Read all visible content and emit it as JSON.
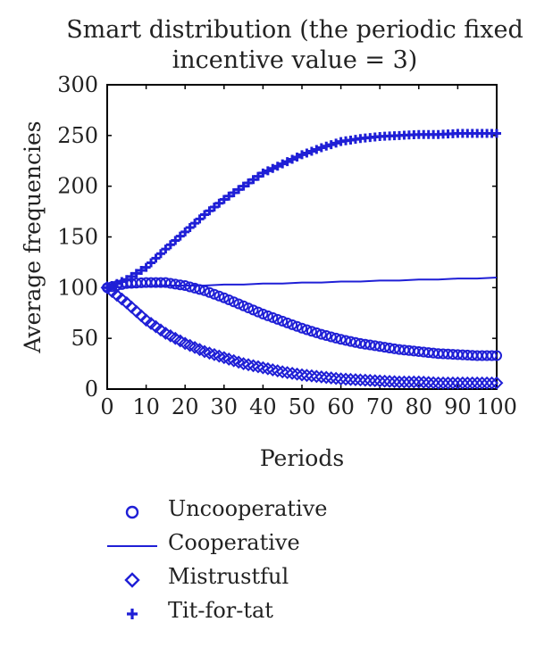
{
  "chart_data": {
    "type": "line",
    "title_lines": [
      "Smart distribution (the periodic fixed",
      "incentive value = 3)"
    ],
    "xlabel": "Periods",
    "ylabel": "Average frequencies",
    "xlim": [
      0,
      100
    ],
    "ylim": [
      0,
      300
    ],
    "xticks": [
      0,
      10,
      20,
      30,
      40,
      50,
      60,
      70,
      80,
      90,
      100
    ],
    "yticks": [
      0,
      50,
      100,
      150,
      200,
      250,
      300
    ],
    "grid": false,
    "legend_placement": "below",
    "x": [
      0,
      5,
      10,
      15,
      20,
      25,
      30,
      35,
      40,
      45,
      50,
      55,
      60,
      65,
      70,
      75,
      80,
      85,
      90,
      95,
      100
    ],
    "series": [
      {
        "name": "Uncooperative",
        "marker": "circle",
        "color": "#1f1fd6",
        "values": [
          100,
          104,
          105,
          105,
          102,
          97,
          90,
          82,
          74,
          67,
          60,
          54,
          49,
          45,
          42,
          39,
          37,
          35,
          34,
          33,
          33
        ]
      },
      {
        "name": "Cooperative",
        "marker": "line",
        "color": "#1f1fd6",
        "values": [
          100,
          101,
          101,
          102,
          102,
          102,
          103,
          103,
          104,
          104,
          105,
          105,
          106,
          106,
          107,
          107,
          108,
          108,
          109,
          109,
          110
        ]
      },
      {
        "name": "Mistrustful",
        "marker": "diamond",
        "color": "#1f1fd6",
        "values": [
          100,
          85,
          68,
          55,
          45,
          37,
          31,
          25,
          21,
          17,
          14,
          12,
          10,
          9,
          8,
          7,
          7,
          6,
          6,
          6,
          6
        ]
      },
      {
        "name": "Tit-for-tat",
        "marker": "plus",
        "color": "#1f1fd6",
        "values": [
          100,
          108,
          120,
          138,
          155,
          172,
          187,
          200,
          213,
          222,
          231,
          238,
          244,
          247,
          249,
          250,
          251,
          251,
          252,
          252,
          252
        ]
      }
    ]
  }
}
